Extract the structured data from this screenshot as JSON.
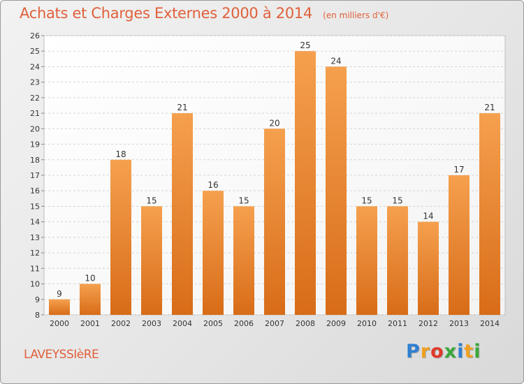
{
  "chart_data": {
    "type": "bar",
    "title": "Achats et Charges Externes 2000 à 2014",
    "subtitle": "(en milliers d'€)",
    "categories": [
      "2000",
      "2001",
      "2002",
      "2003",
      "2004",
      "2005",
      "2006",
      "2007",
      "2008",
      "2009",
      "2010",
      "2011",
      "2012",
      "2013",
      "2014"
    ],
    "values": [
      9,
      10,
      18,
      15,
      21,
      16,
      15,
      20,
      25,
      24,
      15,
      15,
      14,
      17,
      21
    ],
    "ylim": [
      8,
      26
    ],
    "yticks": [
      8,
      9,
      10,
      11,
      12,
      13,
      14,
      15,
      16,
      17,
      18,
      19,
      20,
      21,
      22,
      23,
      24,
      25,
      26
    ],
    "grid": true,
    "bar_color_top": "#f5a04e",
    "bar_color_bottom": "#d86c18"
  },
  "footer": {
    "location": "LAVEYSSIèRE",
    "brand_letters": [
      "P",
      "r",
      "o",
      "x",
      "i",
      "t",
      "i"
    ],
    "brand_colors": [
      "#2f7fd1",
      "#f0a020",
      "#e03a2a",
      "#3aa83a",
      "#2f7fd1",
      "#f0a020",
      "#3aa83a"
    ]
  }
}
